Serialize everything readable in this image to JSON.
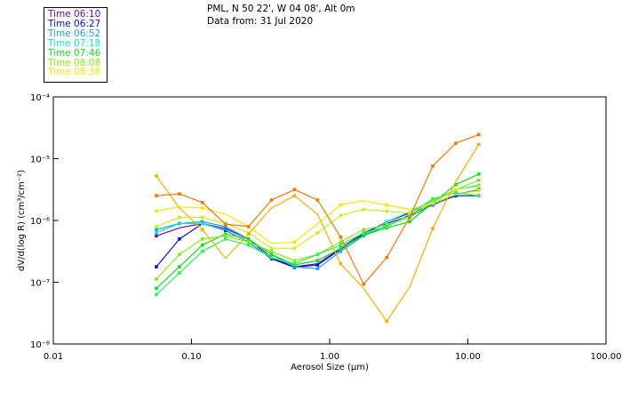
{
  "header": {
    "location": "PML, N 50 22', W 04 08', Alt 0m",
    "date_line": "Data from: 31 Jul 2020"
  },
  "chart_data": {
    "type": "line",
    "title": "PML, N 50 22', W 04 08', Alt 0m — Data from: 31 Jul 2020",
    "xlabel": "Aerosol Size (µm)",
    "ylabel": "dV/d(log R) (cm³/cm⁻²)",
    "xscale": "log",
    "yscale": "log",
    "xlim": [
      0.01,
      100
    ],
    "ylim": [
      1e-08,
      0.0001
    ],
    "x_ticks": [
      "0.01",
      "0.10",
      "1.00",
      "10.00",
      "100.00"
    ],
    "y_ticks": [
      "10⁻⁴",
      "10⁻⁵",
      "10⁻⁶",
      "10⁻⁷",
      "10⁻⁸"
    ],
    "y_tick_values": [
      -4,
      -5,
      -6,
      -7,
      -8
    ],
    "legend_position": "top-left",
    "x_log10": [
      -1.254,
      -1.087,
      -0.921,
      -0.754,
      -0.587,
      -0.421,
      -0.254,
      -0.087,
      0.079,
      0.246,
      0.413,
      0.579,
      0.746,
      0.913,
      1.079
    ],
    "series": [
      {
        "name": "Time 06:10",
        "color": "#6a0aa8",
        "in_legend": true,
        "log10_values": [
          -6.25,
          -6.12,
          -6.05,
          -6.13,
          -6.3,
          -6.6,
          -6.75,
          -6.7,
          -6.45,
          -6.2,
          -6.05,
          -5.92,
          -5.75,
          -5.58,
          -5.5
        ]
      },
      {
        "name": "Time 06:27",
        "color": "#0010d8",
        "in_legend": true,
        "log10_values": [
          -6.75,
          -6.3,
          -6.05,
          -6.16,
          -6.35,
          -6.62,
          -6.76,
          -6.72,
          -6.47,
          -6.22,
          -6.02,
          -5.88,
          -5.74,
          -5.6,
          -5.6
        ]
      },
      {
        "name": "Time 06:52",
        "color": "#1ca0f0",
        "in_legend": true,
        "log10_values": [
          -6.15,
          -6.05,
          -6.02,
          -6.1,
          -6.3,
          -6.55,
          -6.75,
          -6.78,
          -6.5,
          -6.25,
          -6.08,
          -5.95,
          -5.74,
          -5.58,
          -5.5
        ]
      },
      {
        "name": "Time 07:18",
        "color": "#10e8c8",
        "in_legend": true,
        "log10_values": [
          -6.2,
          -6.05,
          -6.05,
          -6.15,
          -6.35,
          -6.6,
          -6.72,
          -6.65,
          -6.45,
          -6.25,
          -6.02,
          -5.86,
          -5.68,
          -5.5,
          -5.43
        ]
      },
      {
        "name": "Time 07:46",
        "color": "#10e020",
        "in_legend": true,
        "log10_values": [
          -7.1,
          -6.75,
          -6.4,
          -6.22,
          -6.3,
          -6.55,
          -6.72,
          -6.65,
          -6.45,
          -6.24,
          -6.12,
          -6.02,
          -5.72,
          -5.42,
          -5.25
        ]
      },
      {
        "name": "Time 08:08",
        "color": "#88e818",
        "in_legend": true,
        "log10_values": [
          -6.95,
          -6.55,
          -6.3,
          -6.25,
          -6.35,
          -6.5,
          -6.65,
          -6.55,
          -6.35,
          -6.15,
          -6.07,
          -5.95,
          -5.7,
          -5.5,
          -5.35
        ]
      },
      {
        "name": "Time 08:38",
        "color": "#f0e800",
        "in_legend": true,
        "log10_values": [
          -5.85,
          -5.78,
          -5.8,
          -5.9,
          -6.1,
          -6.37,
          -6.35,
          -6.05,
          -5.75,
          -5.68,
          -5.75,
          -5.82,
          -5.72,
          -5.58,
          -5.52
        ]
      },
      {
        "name": "",
        "color": "#38e860",
        "in_legend": false,
        "log10_values": [
          -7.2,
          -6.85,
          -6.5,
          -6.3,
          -6.4,
          -6.6,
          -6.7,
          -6.55,
          -6.4,
          -6.2,
          -6.1,
          -5.9,
          -5.65,
          -5.55,
          -5.6
        ]
      },
      {
        "name": "",
        "color": "#c8f020",
        "in_legend": false,
        "log10_values": [
          -6.1,
          -5.95,
          -5.95,
          -6.05,
          -6.2,
          -6.45,
          -6.45,
          -6.2,
          -5.92,
          -5.82,
          -5.85,
          -5.88,
          -5.72,
          -5.5,
          -5.45
        ]
      },
      {
        "name": "",
        "color": "#f0b000",
        "in_legend": false,
        "log10_values": [
          -5.28,
          -5.8,
          -6.15,
          -6.61,
          -6.22,
          -5.8,
          -5.6,
          -5.9,
          -6.7,
          -7.1,
          -7.63,
          -7.08,
          -6.13,
          -5.37,
          -4.77
        ]
      },
      {
        "name": "",
        "color": "#f07800",
        "in_legend": false,
        "log10_values": [
          -5.6,
          -5.57,
          -5.71,
          -6.06,
          -6.1,
          -5.67,
          -5.5,
          -5.67,
          -6.27,
          -7.03,
          -6.6,
          -5.95,
          -5.12,
          -4.75,
          -4.61
        ]
      }
    ]
  }
}
